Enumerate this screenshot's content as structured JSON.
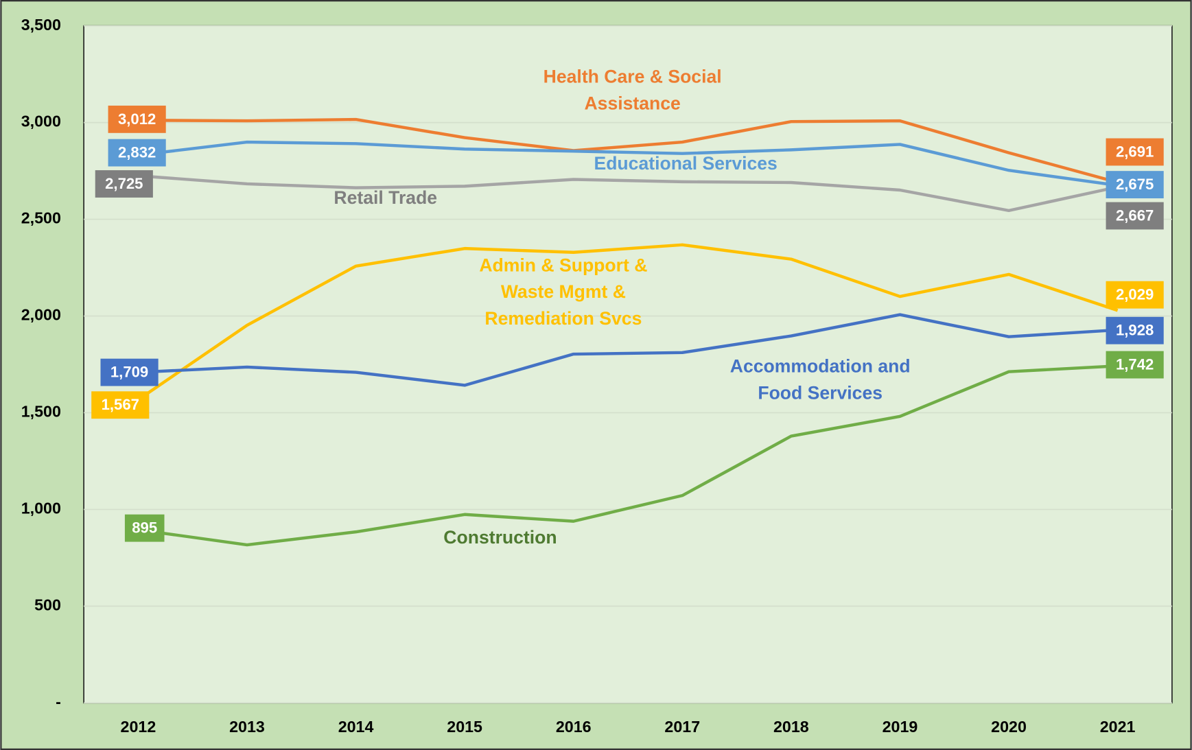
{
  "chart_data": {
    "type": "line",
    "categories": [
      "2012",
      "2013",
      "2014",
      "2015",
      "2016",
      "2017",
      "2018",
      "2019",
      "2020",
      "2021"
    ],
    "ylim": [
      0,
      3500
    ],
    "yticks": [
      {
        "value": 0,
        "label": "-"
      },
      500,
      {
        "value": 1000,
        "label": "1,000"
      },
      {
        "value": 1500,
        "label": "1,500"
      },
      {
        "value": 2000,
        "label": "2,000"
      },
      {
        "value": 2500,
        "label": "2,500"
      },
      {
        "value": 3000,
        "label": "3,000"
      },
      {
        "value": 3500,
        "label": "3,500"
      }
    ],
    "grid": true,
    "series": [
      {
        "name": "Health Care & Social Assistance",
        "color": "#ed7d31",
        "label_color": "#ed7d31",
        "text_color": "#ed7d31",
        "values": [
          3012,
          3009,
          3016,
          2922,
          2855,
          2899,
          3005,
          3009,
          2844,
          2691
        ],
        "value_labels": [
          "3,012",
          null,
          null,
          null,
          null,
          null,
          null,
          null,
          null,
          "2,691"
        ]
      },
      {
        "name": "Educational Services",
        "color": "#5b9bd5",
        "label_color": "#5b9bd5",
        "text_color": "#5b9bd5",
        "values": [
          2832,
          2899,
          2891,
          2863,
          2852,
          2840,
          2859,
          2887,
          2753,
          2675
        ],
        "value_labels": [
          "2,832",
          null,
          null,
          null,
          null,
          null,
          null,
          null,
          null,
          "2,675"
        ]
      },
      {
        "name": "Retail Trade",
        "color": "#a5a5a5",
        "label_color": "#7f7f7f",
        "text_color": "#7f7f7f",
        "values": [
          2725,
          2683,
          2663,
          2671,
          2706,
          2694,
          2690,
          2651,
          2545,
          2667
        ],
        "value_labels": [
          "2,725",
          null,
          null,
          null,
          null,
          null,
          null,
          null,
          null,
          "2,667"
        ]
      },
      {
        "name": "Admin & Support & Waste Mgmt & Remediation Svcs",
        "color": "#ffc000",
        "label_color": "#ffc000",
        "text_color": "#ffc000",
        "values": [
          1567,
          1952,
          2258,
          2349,
          2329,
          2368,
          2294,
          2101,
          2215,
          2029
        ],
        "value_labels": [
          "1,567",
          null,
          null,
          null,
          null,
          null,
          null,
          null,
          null,
          "2,029"
        ]
      },
      {
        "name": "Accommodation and Food Services",
        "color": "#4472c4",
        "label_color": "#4472c4",
        "text_color": "#4472c4",
        "values": [
          1709,
          1736,
          1709,
          1642,
          1803,
          1811,
          1897,
          2007,
          1893,
          1928
        ],
        "value_labels": [
          "1,709",
          null,
          null,
          null,
          null,
          null,
          null,
          null,
          null,
          "1,928"
        ]
      },
      {
        "name": "Construction",
        "color": "#70ad47",
        "label_color": "#70ad47",
        "text_color": "#4e7a31",
        "values": [
          895,
          817,
          884,
          974,
          939,
          1072,
          1379,
          1481,
          1712,
          1742
        ],
        "value_labels": [
          "895",
          null,
          null,
          null,
          null,
          null,
          null,
          null,
          null,
          "1,742"
        ]
      }
    ]
  }
}
